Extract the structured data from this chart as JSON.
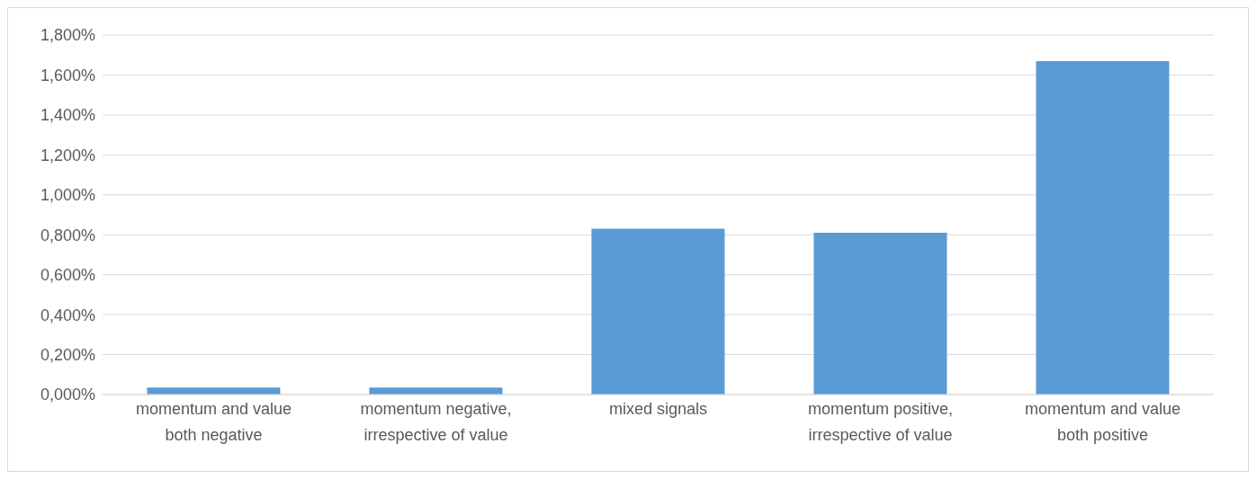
{
  "chart_data": {
    "type": "bar",
    "categories": [
      "momentum and value both negative",
      "momentum negative, irrespective of value",
      "mixed signals",
      "momentum positive, irrespective of value",
      "momentum and value both positive"
    ],
    "values": [
      0.035,
      0.035,
      0.83,
      0.81,
      1.67
    ],
    "color": "#5b9bd5",
    "ylim": [
      0,
      1.8
    ],
    "yticks": [
      {
        "value": 0,
        "label": "0,000%"
      },
      {
        "value": 0.2,
        "label": "0,200%"
      },
      {
        "value": 0.4,
        "label": "0,400%"
      },
      {
        "value": 0.6,
        "label": "0,600%"
      },
      {
        "value": 0.8,
        "label": "0,800%"
      },
      {
        "value": 1,
        "label": "1,000%"
      },
      {
        "value": 1.2,
        "label": "1,200%"
      },
      {
        "value": 1.4,
        "label": "1,400%"
      },
      {
        "value": 1.6,
        "label": "1,600%"
      },
      {
        "value": 1.8,
        "label": "1,800%"
      }
    ],
    "grid": "y",
    "legend": false
  }
}
